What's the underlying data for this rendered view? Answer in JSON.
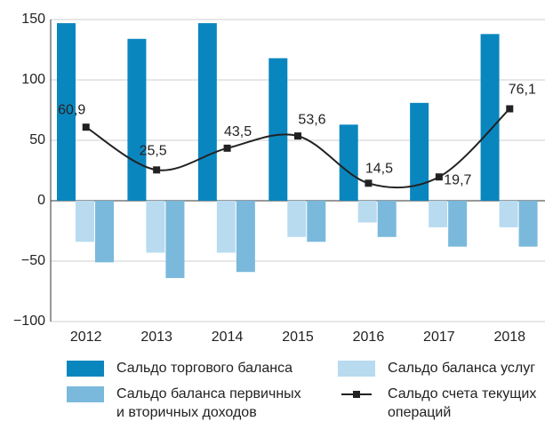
{
  "chart_data": {
    "type": "bar",
    "categories": [
      "2012",
      "2013",
      "2014",
      "2015",
      "2016",
      "2017",
      "2018"
    ],
    "series": [
      {
        "name": "Сальдо торгового баланса",
        "color": "#0a86bf",
        "values": [
          147,
          134,
          147,
          118,
          63,
          81,
          138
        ]
      },
      {
        "name": "Сальдо баланса услуг",
        "color": "#b8dbf0",
        "values": [
          -34,
          -43,
          -43,
          -30,
          -18,
          -22,
          -22
        ]
      },
      {
        "name": "Сальдо баланса первичных и вторичных доходов",
        "color": "#7ab9dc",
        "values": [
          -51,
          -64,
          -59,
          -34,
          -30,
          -38,
          -38
        ]
      },
      {
        "name": "Сальдо счета текущих операций",
        "type": "line",
        "color": "#222222",
        "values": [
          60.9,
          25.5,
          43.5,
          53.6,
          14.5,
          19.7,
          76.1
        ],
        "value_labels": [
          "60,9",
          "25,5",
          "43,5",
          "53,6",
          "14,5",
          "19,7",
          "76,1"
        ]
      }
    ],
    "ylim": [
      -100,
      150
    ],
    "yticks": [
      {
        "value": -100,
        "label": "−100"
      },
      {
        "value": -50,
        "label": "−50"
      },
      0,
      50,
      100,
      150
    ],
    "grid": true
  }
}
